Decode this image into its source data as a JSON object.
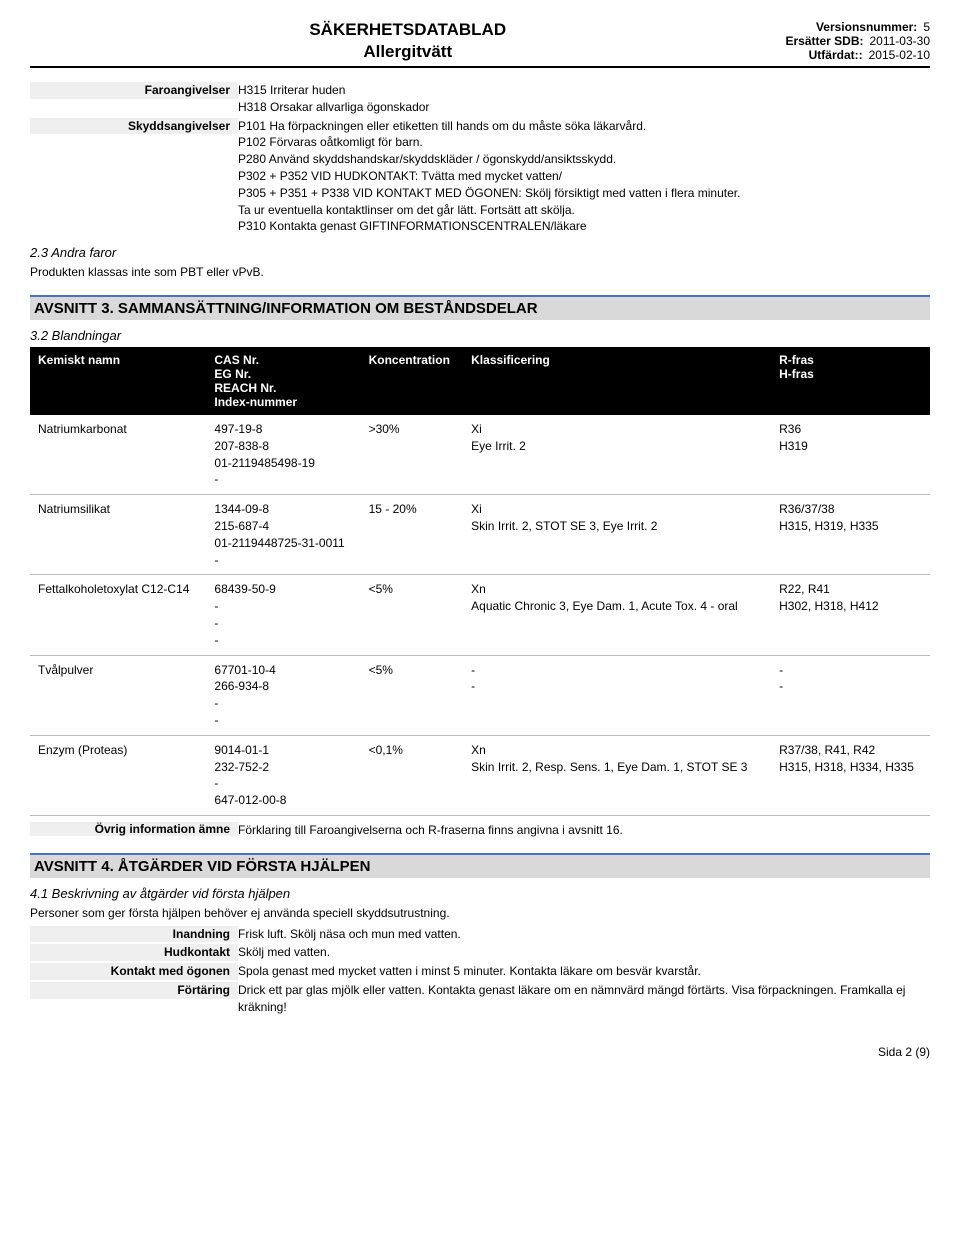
{
  "header": {
    "title1": "SÄKERHETSDATABLAD",
    "title2": "Allergitvätt",
    "version_lbl": "Versionsnummer:",
    "version_val": "5",
    "replaces_lbl": "Ersätter SDB:",
    "replaces_val": "2011-03-30",
    "issued_lbl": "Utfärdat::",
    "issued_val": "2015-02-10"
  },
  "hazard": {
    "faro_lbl": "Faroangivelser",
    "faro_val": "H315 Irriterar huden\nH318 Orsakar allvarliga ögonskador",
    "skydd_lbl": "Skyddsangivelser",
    "skydd_val": "P101 Ha förpackningen eller etiketten till hands om du måste söka läkarvård.\nP102 Förvaras oåtkomligt för barn.\nP280 Använd skyddshandskar/skyddskläder / ögonskydd/ansiktsskydd.\nP302 + P352 VID HUDKONTAKT: Tvätta med mycket vatten/\nP305 + P351 + P338 VID KONTAKT MED ÖGONEN: Skölj försiktigt med vatten i flera minuter.\nTa ur eventuella kontaktlinser om det går lätt. Fortsätt att skölja.\nP310 Kontakta genast GIFTINFORMATIONSCENTRALEN/läkare"
  },
  "sec23_heading": "2.3 Andra faror",
  "sec23_text": "Produkten klassas inte som PBT eller vPvB.",
  "section3_title": "AVSNITT 3. SAMMANSÄTTNING/INFORMATION OM BESTÅNDSDELAR",
  "sec32_heading": "3.2 Blandningar",
  "table": {
    "headers": {
      "name": "Kemiskt namn",
      "cas": "CAS Nr.\nEG Nr.\nREACH Nr.\nIndex-nummer",
      "conc": "Koncentration",
      "class": "Klassificering",
      "phrases": "R-fras\nH-fras"
    },
    "rows": [
      {
        "name": "Natriumkarbonat",
        "cas": "497-19-8\n207-838-8\n01-2119485498-19\n-",
        "conc": ">30%",
        "class": "Xi\nEye Irrit. 2",
        "phrases": "R36\nH319"
      },
      {
        "name": "Natriumsilikat",
        "cas": "1344-09-8\n215-687-4\n01-2119448725-31-0011\n-",
        "conc": "15 - 20%",
        "class": "Xi\nSkin Irrit. 2, STOT SE 3, Eye Irrit. 2",
        "phrases": "R36/37/38\nH315, H319, H335"
      },
      {
        "name": "Fettalkoholetoxylat C12-C14",
        "cas": "68439-50-9\n-\n-\n-",
        "conc": "<5%",
        "class": "Xn\nAquatic Chronic 3, Eye Dam. 1, Acute Tox. 4 - oral",
        "phrases": "R22, R41\nH302, H318, H412"
      },
      {
        "name": "Tvålpulver",
        "cas": "67701-10-4\n266-934-8\n-\n-",
        "conc": "<5%",
        "class": "-\n-",
        "phrases": "-\n-"
      },
      {
        "name": "Enzym (Proteas)",
        "cas": "9014-01-1\n232-752-2\n-\n647-012-00-8",
        "conc": "<0,1%",
        "class": "Xn\nSkin Irrit. 2, Resp. Sens. 1, Eye Dam. 1, STOT SE 3",
        "phrases": "R37/38, R41, R42\nH315, H318, H334, H335"
      }
    ],
    "footer_lbl": "Övrig information ämne",
    "footer_val": "Förklaring till Faroangivelserna och R-fraserna finns angivna i avsnitt 16."
  },
  "section4_title": "AVSNITT 4. ÅTGÄRDER VID FÖRSTA HJÄLPEN",
  "sec41_heading": "4.1 Beskrivning av åtgärder vid första hjälpen",
  "sec41_text": "Personer som ger första hjälpen behöver ej använda speciell skyddsutrustning.",
  "firstaid": {
    "inandning_lbl": "Inandning",
    "inandning_val": "Frisk luft. Skölj näsa och mun med vatten.",
    "hudkontakt_lbl": "Hudkontakt",
    "hudkontakt_val": "Skölj med vatten.",
    "ogon_lbl": "Kontakt med ögonen",
    "ogon_val": "Spola genast med mycket vatten i minst 5 minuter. Kontakta läkare om besvär kvarstår.",
    "fortaring_lbl": "Förtäring",
    "fortaring_val": "Drick ett par glas mjölk eller vatten. Kontakta genast läkare om en nämnvärd mängd förtärts. Visa förpackningen. Framkalla ej kräkning!"
  },
  "page_number": "Sida 2 (9)"
}
